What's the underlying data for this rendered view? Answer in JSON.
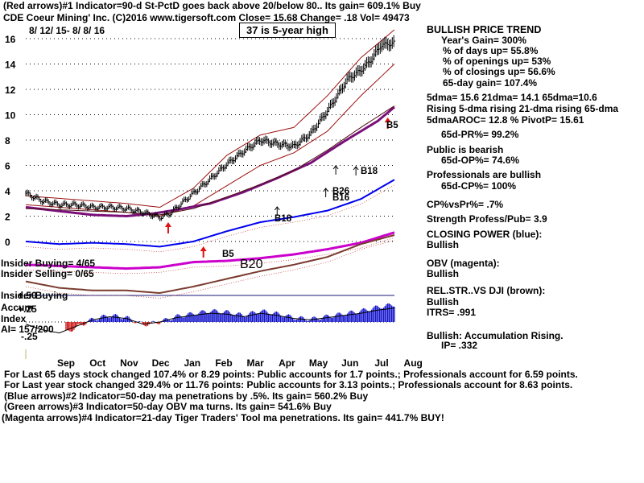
{
  "header": {
    "line1": "(Red arrows)#1 Indicator=90-d St-PctD goes back above 20/below 80.. Its gain= 609.1% Buy",
    "line2": "CDE   Coeur Mining' Inc.  (C)2016 www.tigersoft.com     Close=  15.68  Change= .18 Vol= 49473",
    "date_range": "8/ 12/ 15-  8/ 8/ 16",
    "badge": "37 is 5-year high"
  },
  "right_panel": {
    "title": "BULLISH PRICE TREND",
    "lines": [
      "Year's Gain= 300%",
      "% of days up= 55.8%",
      "% of openings up= 53%",
      "% of closings up= 56.6%",
      "65-day gain= 107.4%",
      "5dma= 15.6 21dma= 14.1 65dma=10.6",
      "Rising 5-dma rising 21-dma rising 65-dma",
      "5dmaAROC= 12.8 %  PivotP= 15.61",
      "65d-PR%= 99.2%",
      "Public is bearish",
      "65d-OP%= 74.6%",
      "Professionals are bullish",
      "65d-CP%= 100%",
      "CP%vsPr%=  .7%",
      "Strength Profess/Pub= 3.9",
      "CLOSING POWER (blue):",
      "Bullish",
      "OBV (magenta):",
      "Bullish",
      "REL.STR..VS DJI (brown):",
      "Bullish",
      "ITRS= .991",
      "Bullish: Accumulation Rising.",
      "IP=  .332"
    ]
  },
  "left_labels": {
    "insider_buying": "Insider Buying= 4/65",
    "insider_selling": "Insider Selling= 0/65",
    "b20": "B20",
    "insider_buying2": "Insider Buying",
    "accum": "Accum",
    "index": "Index",
    "ai": "AI= 157/200"
  },
  "signals": {
    "b5a": "B5",
    "b5b": "B5",
    "b18a": "B18",
    "b18b": "B18",
    "b26": "B26",
    "b16": "B16"
  },
  "footer": {
    "line1": "For Last 65 days stock changed  107.4% or  8.29 points:  Public accounts for  1.7 points.;  Professionals account for  6.59 points.",
    "line2": "For Last year stock changed  329.4% or  11.76 points:  Public accounts for  3.13 points.;  Professionals account for  8.63 points.",
    "line3": "(Blue arrows)#2 Indicator=50-day ma penetrations by .5%. Its gain= 560.2% Buy",
    "line4": "(Green arrows)#3 Indicator=50-day OBV ma turns. Its gain= 541.6% Buy",
    "line5": "(Magenta arrows)#4 Indicator=21-day Tiger Traders' Tool ma penetrations. Its gain= 441.7% BUY!"
  },
  "colors": {
    "price": "#000000",
    "closing_power": "#0000ee",
    "obv": "#cc00cc",
    "rel_strength": "#7a3b2e",
    "band": "#9b1010",
    "ma65": "#7a0f7a",
    "accum_pos": "#1010cc",
    "accum_neg": "#cc1010",
    "signal_red": "#e01010",
    "grid": "#000000"
  },
  "chart_data": [
    {
      "type": "line",
      "title": "",
      "x_axis_labels": [
        "Sep",
        "Oct",
        "Nov",
        "Dec",
        "Jan",
        "Feb",
        "Mar",
        "Apr",
        "May",
        "Jun",
        "Jul",
        "Aug"
      ],
      "y_ticks": [
        0,
        2,
        4,
        6,
        8,
        10,
        12,
        14,
        16
      ],
      "ylim": [
        0,
        17
      ],
      "grid": true,
      "series": [
        {
          "role": "price",
          "x": [
            0,
            0.5,
            1,
            1.5,
            2,
            2.5,
            3,
            3.5,
            4,
            4.3,
            4.6,
            5,
            5.5,
            6,
            6.5,
            7,
            7.5,
            8,
            8.5,
            9,
            9.3,
            9.6,
            10,
            10.3,
            10.6,
            10.9,
            11
          ],
          "y": [
            3.8,
            3.2,
            2.9,
            2.9,
            2.7,
            2.7,
            2.6,
            2.3,
            1.9,
            2.2,
            2.9,
            3.8,
            4.9,
            6.1,
            7.1,
            8.0,
            7.7,
            7.5,
            8.5,
            10.3,
            11.5,
            12.8,
            13.5,
            14.3,
            15.5,
            15.6,
            15.68
          ]
        },
        {
          "role": "upper_band",
          "x": [
            0,
            1,
            2,
            3,
            4,
            5,
            6,
            7,
            8,
            9,
            10,
            11
          ],
          "y": [
            3.6,
            3.4,
            3.2,
            3.0,
            2.7,
            4.2,
            6.8,
            8.4,
            9.0,
            11.5,
            14.5,
            16.7
          ]
        },
        {
          "role": "lower_band",
          "x": [
            0,
            1,
            2,
            3,
            4,
            5,
            6,
            7,
            8,
            9,
            10,
            11
          ],
          "y": [
            2.9,
            2.7,
            2.5,
            2.3,
            2.0,
            2.8,
            4.4,
            6.0,
            7.0,
            8.7,
            11.5,
            14.0
          ]
        },
        {
          "role": "ma65",
          "x": [
            0,
            1,
            2,
            3,
            3.8,
            4.5,
            5.5,
            6.5,
            7.5,
            8.5,
            9.5,
            10.5,
            11
          ],
          "y": [
            2.7,
            2.4,
            2.1,
            2.0,
            2.2,
            2.5,
            3.0,
            3.9,
            5.0,
            6.2,
            7.9,
            9.5,
            10.6
          ]
        },
        {
          "role": "ma_dark",
          "x": [
            0,
            1,
            2,
            3,
            4,
            5,
            6,
            7,
            8,
            9,
            10,
            11
          ],
          "y": [
            2.6,
            2.5,
            2.4,
            2.3,
            2.1,
            2.6,
            3.5,
            4.5,
            5.6,
            7.2,
            9.0,
            10.7
          ]
        }
      ]
    },
    {
      "type": "line",
      "title": "",
      "series": [
        {
          "role": "closing_power",
          "x": [
            0,
            1,
            2,
            3,
            4,
            5,
            6,
            7,
            8,
            9,
            10,
            11
          ],
          "y": [
            0.0,
            -0.2,
            -0.1,
            -0.2,
            -0.4,
            0.0,
            0.8,
            1.5,
            1.9,
            2.4,
            3.3,
            4.8
          ]
        },
        {
          "role": "obv",
          "x": [
            0,
            1,
            2,
            3,
            4,
            5,
            6,
            7,
            8,
            9,
            10,
            11
          ],
          "y": [
            -1.8,
            -1.9,
            -2.0,
            -2.1,
            -2.0,
            -1.6,
            -1.5,
            -1.3,
            -1.0,
            -0.6,
            -0.1,
            0.7
          ]
        },
        {
          "role": "rel_strength",
          "x": [
            0,
            1,
            2,
            3,
            4,
            5,
            6,
            7,
            8,
            9,
            10,
            11
          ],
          "y": [
            -3.1,
            -3.6,
            -3.8,
            -3.8,
            -4.0,
            -3.5,
            -2.9,
            -2.3,
            -1.8,
            -1.2,
            -0.2,
            0.5
          ]
        }
      ]
    },
    {
      "type": "bar",
      "title": "",
      "y_ticks": [
        0.5,
        0.25,
        -0.25
      ],
      "y_tick_labels": [
        "+.50",
        "+.25",
        "-.25"
      ],
      "ylim": [
        -0.3,
        0.55
      ],
      "series": [
        {
          "role": "accumulation_index",
          "x": [
            0,
            0.5,
            1,
            1.5,
            2,
            2.5,
            3,
            3.5,
            4,
            4.5,
            5,
            5.5,
            6,
            6.5,
            7,
            7.5,
            8,
            8.5,
            9,
            9.5,
            10,
            10.5,
            11
          ],
          "y": [
            -0.05,
            -0.18,
            -0.25,
            -0.1,
            0.05,
            0.12,
            0.08,
            -0.05,
            0.0,
            0.1,
            0.15,
            0.2,
            0.18,
            0.12,
            0.2,
            0.15,
            0.08,
            0.05,
            0.1,
            0.15,
            0.2,
            0.27,
            0.32
          ]
        }
      ]
    }
  ]
}
